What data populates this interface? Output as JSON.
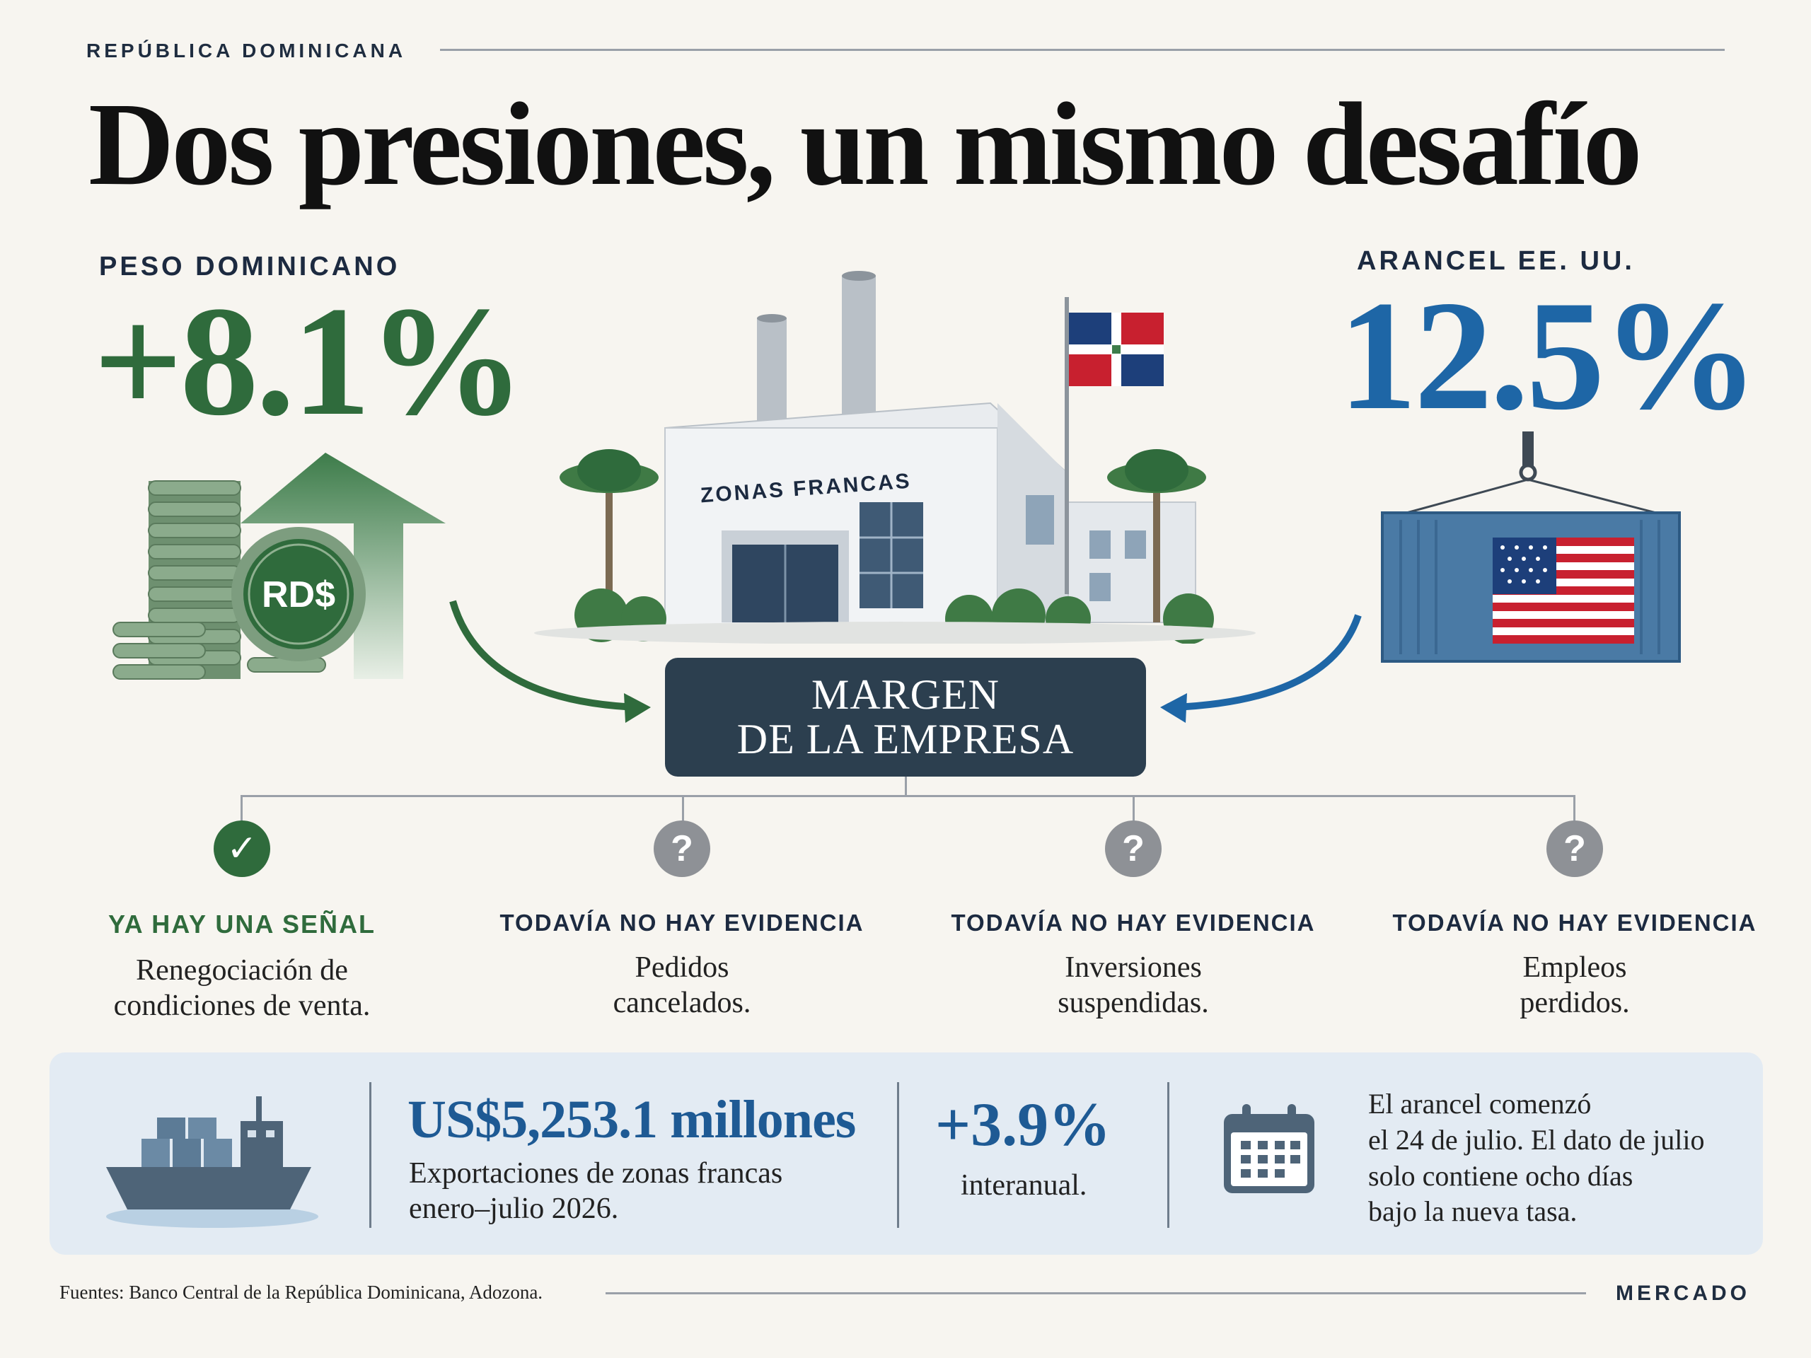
{
  "header": {
    "kicker": "REPÚBLICA DOMINICANA",
    "title": "Dos presiones, un mismo desafío"
  },
  "peso": {
    "label": "PESO DOMINICANO",
    "value": "+8.1%",
    "coin_text": "RD$",
    "color": "#2f6b3c"
  },
  "factory": {
    "sign": "ZONAS FRANCAS"
  },
  "tariff": {
    "label": "ARANCEL EE. UU.",
    "value": "12.5%",
    "color": "#1e66a6"
  },
  "margin": {
    "line1": "MARGEN",
    "line2": "DE LA EMPRESA"
  },
  "effects": [
    {
      "status": "YA HAY UNA SEÑAL",
      "text": "Renegociación de condiciones de venta.",
      "icon": "check-icon",
      "glyph": "✓"
    },
    {
      "status": "TODAVÍA NO HAY EVIDENCIA",
      "text": "Pedidos cancelados.",
      "icon": "question-icon",
      "glyph": "?"
    },
    {
      "status": "TODAVÍA NO HAY EVIDENCIA",
      "text": "Inversiones suspendidas.",
      "icon": "question-icon",
      "glyph": "?"
    },
    {
      "status": "TODAVÍA NO HAY EVIDENCIA",
      "text": "Empleos perdidos.",
      "icon": "question-icon",
      "glyph": "?"
    }
  ],
  "bottom": {
    "exports_value": "US$5,253.1 millones",
    "exports_desc_1": "Exportaciones de zonas francas",
    "exports_desc_2": "enero–julio 2026.",
    "yoy_value": "+3.9%",
    "yoy_desc": "interanual.",
    "note_1": "El arancel comenzó",
    "note_2": "el 24 de julio. El dato de julio",
    "note_3": "solo contiene ocho días",
    "note_4": "bajo la nueva tasa."
  },
  "footer": {
    "source": "Fuentes: Banco Central de la República Dominicana, Adozona.",
    "brand": "MERCADO"
  }
}
